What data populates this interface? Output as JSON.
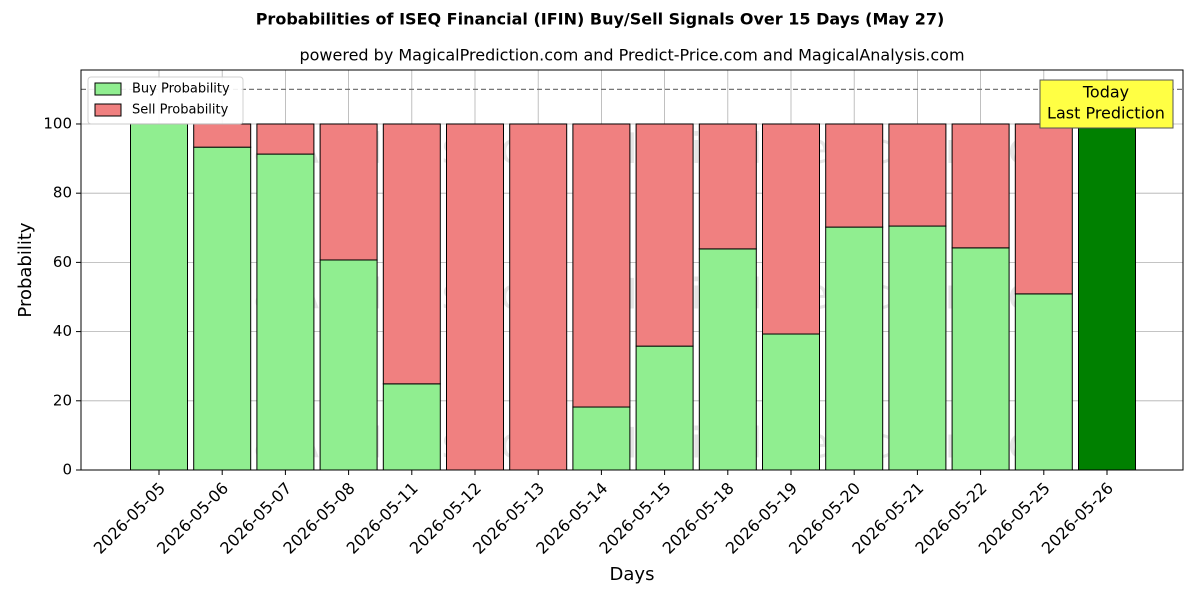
{
  "chart_data": {
    "type": "stacked_bar",
    "title": "Probabilities of ISEQ Financial (IFIN) Buy/Sell Signals Over 15 Days (May 27)",
    "subtitle": "powered by MagicalPrediction.com and Predict-Price.com and MagicalAnalysis.com",
    "x_label": "Days",
    "y_label": "Probability",
    "categories": [
      "2026-05-05",
      "2026-05-06",
      "2026-05-07",
      "2026-05-08",
      "2026-05-11",
      "2026-05-12",
      "2026-05-13",
      "2026-05-14",
      "2026-05-15",
      "2026-05-18",
      "2026-05-19",
      "2026-05-20",
      "2026-05-21",
      "2026-05-22",
      "2026-05-25",
      "2026-05-26"
    ],
    "series": [
      {
        "name": "Buy Probability",
        "color": "#90ee90",
        "values": [
          100,
          93.3,
          91.3,
          60.7,
          24.9,
          0,
          0,
          18.2,
          35.8,
          63.9,
          39.3,
          70.2,
          70.5,
          64.2,
          50.9,
          100
        ]
      },
      {
        "name": "Sell Probability",
        "color": "#f08080",
        "values": [
          0,
          6.7,
          8.7,
          39.3,
          75.1,
          100,
          100,
          81.8,
          64.2,
          36.1,
          60.7,
          29.8,
          29.5,
          35.8,
          49.1,
          0
        ]
      }
    ],
    "today_color": "#008000",
    "annotation": [
      "Today",
      "Last Prediction"
    ],
    "hline": 110,
    "watermarks": [
      "MagicalAnalysis.com",
      "MagicalPrediction.com"
    ],
    "ylim": [
      0,
      115.6
    ],
    "yticks": [
      0,
      20,
      40,
      60,
      80,
      100
    ],
    "grid": true,
    "legend": "upper-left"
  }
}
